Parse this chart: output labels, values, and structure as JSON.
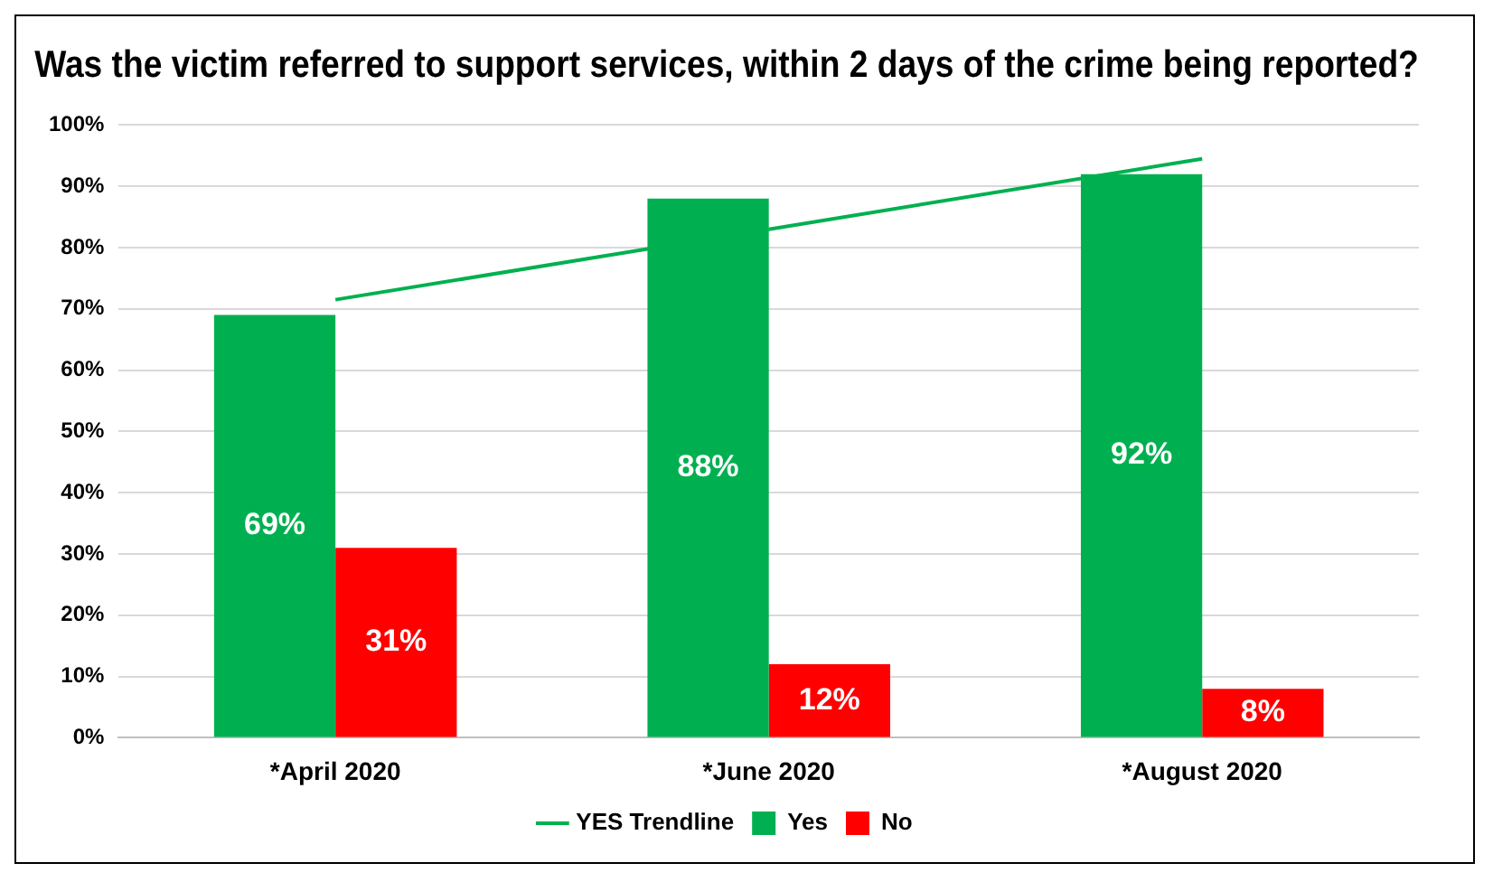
{
  "chart_data": {
    "type": "bar",
    "title": "Was the victim referred to support services, within 2 days of the crime being reported?",
    "categories": [
      "*April 2020",
      "*June 2020",
      "*August 2020"
    ],
    "series": [
      {
        "name": "Yes",
        "color": "#00b050",
        "values": [
          69,
          88,
          92
        ],
        "value_labels": [
          "69%",
          "88%",
          "92%"
        ]
      },
      {
        "name": "No",
        "color": "#ff0000",
        "values": [
          31,
          12,
          8
        ],
        "value_labels": [
          "31%",
          "12%",
          "8%"
        ]
      },
      {
        "name": "YES Trendline",
        "type": "line",
        "color": "#00b050",
        "values": [
          71.5,
          83,
          94.5
        ],
        "marker": "none"
      }
    ],
    "ylim": [
      0,
      100
    ],
    "yticks": [
      {
        "value": 0,
        "label": "0%"
      },
      {
        "value": 10,
        "label": "10%"
      },
      {
        "value": 20,
        "label": "20%"
      },
      {
        "value": 30,
        "label": "30%"
      },
      {
        "value": 40,
        "label": "40%"
      },
      {
        "value": 50,
        "label": "50%"
      },
      {
        "value": 60,
        "label": "60%"
      },
      {
        "value": 70,
        "label": "70%"
      },
      {
        "value": 80,
        "label": "80%"
      },
      {
        "value": 90,
        "label": "90%"
      },
      {
        "value": 100,
        "label": "100%"
      }
    ],
    "grid": "y",
    "legend": "bottom"
  }
}
